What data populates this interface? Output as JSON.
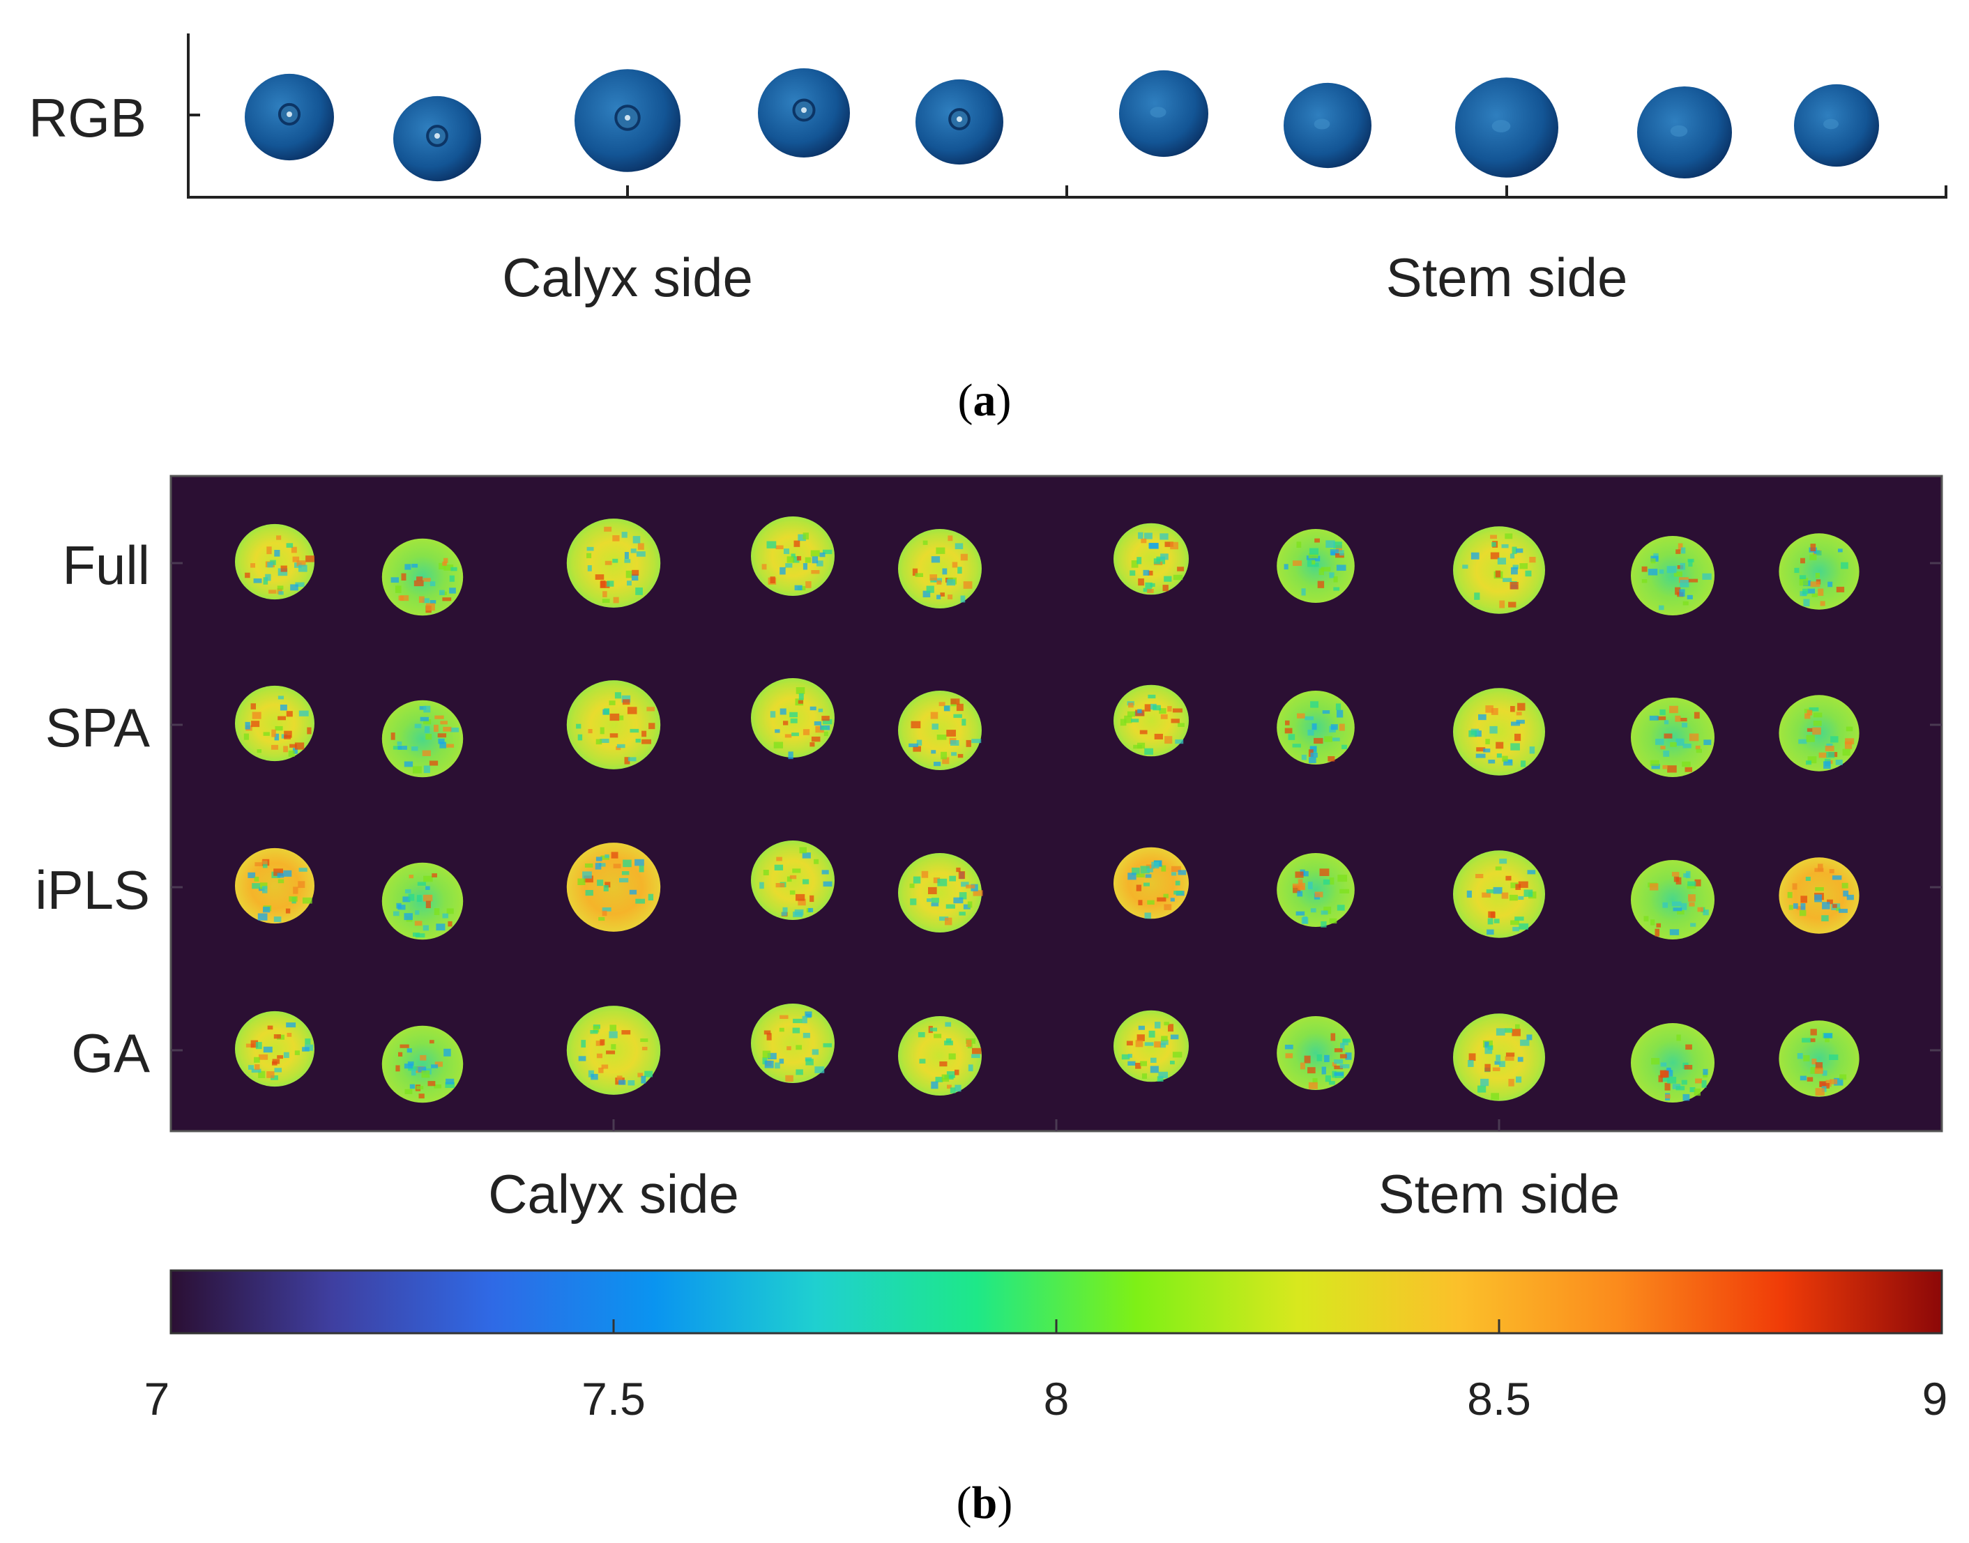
{
  "panel_a": {
    "caption_open": "(",
    "caption_letter": "a",
    "caption_close": ")",
    "row_label": "RGB",
    "group_labels": [
      "Calyx side",
      "Stem side"
    ]
  },
  "panel_b": {
    "caption_open": "(",
    "caption_letter": "b",
    "caption_close": ")",
    "row_labels": [
      "Full",
      "SPA",
      "iPLS",
      "GA"
    ],
    "group_labels": [
      "Calyx side",
      "Stem side"
    ]
  },
  "colors": {
    "background_map": "#2b0f33",
    "berry_dark": "#0d3a72",
    "berry_mid": "#1f6aa8",
    "berry_light": "#4aa3d6",
    "axis": "#222222"
  },
  "chart_data": [
    {
      "type": "image",
      "panel": "a",
      "rows": [
        "RGB"
      ],
      "groups": [
        "Calyx side",
        "Stem side"
      ],
      "samples_per_group": 5
    },
    {
      "type": "heatmap",
      "panel": "b",
      "rows": [
        "Full",
        "SPA",
        "iPLS",
        "GA"
      ],
      "groups": [
        "Calyx side",
        "Stem side"
      ],
      "samples_per_group": 5,
      "colorbar": {
        "min": 7,
        "max": 9,
        "ticks": [
          7,
          7.5,
          8,
          8.5,
          9
        ],
        "tick_labels": [
          "7",
          "7.5",
          "8",
          "8.5",
          "9"
        ],
        "colormap": [
          "#2b0f33",
          "#3f3fa0",
          "#2f6ae6",
          "#0a94f0",
          "#1fd0d0",
          "#1ee888",
          "#7ef016",
          "#d8e81e",
          "#fbc02a",
          "#fb8a1c",
          "#f03c08",
          "#8c0808"
        ]
      },
      "berry_sizes": {
        "Calyx side": [
          0.95,
          0.97,
          1.12,
          1.0,
          1.0
        ],
        "Stem side": [
          0.9,
          0.93,
          1.1,
          1.0,
          0.96
        ]
      }
    }
  ]
}
